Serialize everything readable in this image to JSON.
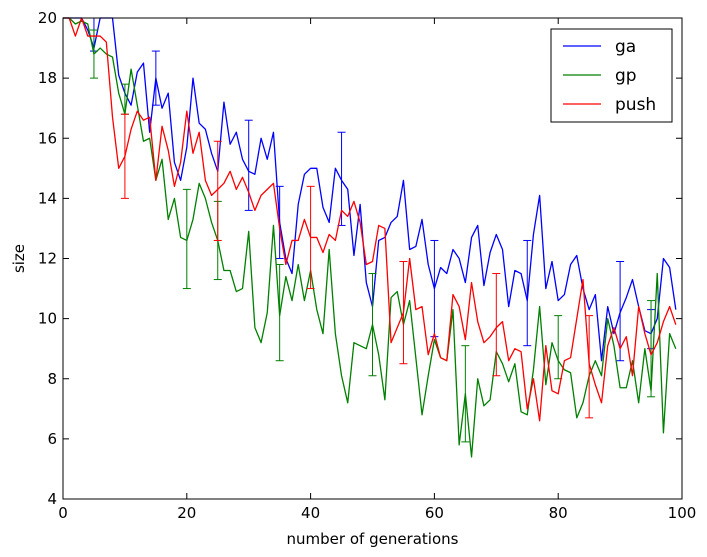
{
  "chart_data": {
    "type": "line",
    "title": "",
    "xlabel": "number of generations",
    "ylabel": "size",
    "xlim": [
      0,
      100
    ],
    "ylim": [
      4,
      20
    ],
    "xticks": [
      0,
      20,
      40,
      60,
      80,
      100
    ],
    "yticks": [
      4,
      6,
      8,
      10,
      12,
      14,
      16,
      18,
      20
    ],
    "grid": false,
    "legend_position": "top-right",
    "series": [
      {
        "name": "ga",
        "color": "#0000ff",
        "x": [
          0,
          1,
          2,
          3,
          4,
          5,
          6,
          7,
          8,
          9,
          10,
          11,
          12,
          13,
          14,
          15,
          16,
          17,
          18,
          19,
          20,
          21,
          22,
          23,
          24,
          25,
          26,
          27,
          28,
          29,
          30,
          31,
          32,
          33,
          34,
          35,
          36,
          37,
          38,
          39,
          40,
          41,
          42,
          43,
          44,
          45,
          46,
          47,
          48,
          49,
          50,
          51,
          52,
          53,
          54,
          55,
          56,
          57,
          58,
          59,
          60,
          61,
          62,
          63,
          64,
          65,
          66,
          67,
          68,
          69,
          70,
          71,
          72,
          73,
          74,
          75,
          76,
          77,
          78,
          79,
          80,
          81,
          82,
          83,
          84,
          85,
          86,
          87,
          88,
          89,
          90,
          91,
          92,
          93,
          94,
          95,
          96,
          97,
          98,
          99
        ],
        "values": [
          20,
          20,
          20,
          20,
          19.6,
          19.0,
          20,
          20,
          20,
          18.1,
          17.5,
          17.1,
          18.2,
          18.5,
          16.2,
          18.0,
          17.0,
          17.5,
          15.2,
          14.6,
          15.7,
          18.0,
          16.5,
          16.3,
          15.5,
          14.9,
          17.2,
          15.8,
          16.2,
          15.3,
          14.9,
          14.8,
          16.0,
          15.3,
          16.2,
          13.2,
          12.0,
          11.5,
          13.8,
          14.8,
          15.0,
          15.0,
          13.7,
          13.2,
          15.0,
          14.6,
          14.3,
          12.1,
          13.8,
          11.2,
          10.4,
          12.6,
          12.7,
          13.2,
          13.4,
          14.6,
          12.3,
          12.4,
          13.3,
          11.8,
          11.0,
          11.7,
          11.5,
          12.3,
          12.0,
          11.2,
          12.7,
          13.1,
          11.1,
          12.2,
          12.8,
          12.3,
          10.4,
          11.6,
          11.5,
          10.6,
          12.8,
          14.1,
          11.0,
          11.9,
          10.6,
          10.8,
          11.8,
          12.1,
          11.0,
          10.3,
          10.8,
          8.6,
          10.4,
          9.5,
          10.2,
          10.7,
          11.3,
          10.4,
          9.6,
          9.5,
          10.0,
          12.0,
          11.7,
          10.3
        ],
        "error_bars": [
          {
            "x": 5,
            "low": 18.9,
            "high": 20.0
          },
          {
            "x": 15,
            "low": 17.1,
            "high": 18.9
          },
          {
            "x": 30,
            "low": 13.6,
            "high": 16.6
          },
          {
            "x": 35,
            "low": 12.0,
            "high": 14.4
          },
          {
            "x": 45,
            "low": 13.1,
            "high": 16.2
          },
          {
            "x": 60,
            "low": 9.4,
            "high": 12.6
          },
          {
            "x": 75,
            "low": 9.1,
            "high": 12.6
          },
          {
            "x": 90,
            "low": 8.6,
            "high": 11.9
          },
          {
            "x": 95,
            "low": 9.0,
            "high": 10.3
          }
        ]
      },
      {
        "name": "gp",
        "color": "#008000",
        "x": [
          0,
          1,
          2,
          3,
          4,
          5,
          6,
          7,
          8,
          9,
          10,
          11,
          12,
          13,
          14,
          15,
          16,
          17,
          18,
          19,
          20,
          21,
          22,
          23,
          24,
          25,
          26,
          27,
          28,
          29,
          30,
          31,
          32,
          33,
          34,
          35,
          36,
          37,
          38,
          39,
          40,
          41,
          42,
          43,
          44,
          45,
          46,
          47,
          48,
          49,
          50,
          51,
          52,
          53,
          54,
          55,
          56,
          57,
          58,
          59,
          60,
          61,
          62,
          63,
          64,
          65,
          66,
          67,
          68,
          69,
          70,
          71,
          72,
          73,
          74,
          75,
          76,
          77,
          78,
          79,
          80,
          81,
          82,
          83,
          84,
          85,
          86,
          87,
          88,
          89,
          90,
          91,
          92,
          93,
          94,
          95,
          96,
          97,
          98,
          99
        ],
        "values": [
          20,
          20,
          19.8,
          19.9,
          19.8,
          18.8,
          19.0,
          18.8,
          18.7,
          17.5,
          16.8,
          18.3,
          17.1,
          15.9,
          16.0,
          14.6,
          15.3,
          13.3,
          14.0,
          12.7,
          12.6,
          13.3,
          14.5,
          14.0,
          13.2,
          12.6,
          11.6,
          11.6,
          10.9,
          11.0,
          12.9,
          9.7,
          9.2,
          10.2,
          13.1,
          10.1,
          11.4,
          10.6,
          11.8,
          10.6,
          11.6,
          10.3,
          9.5,
          12.3,
          9.5,
          8.1,
          7.2,
          9.2,
          9.1,
          9.0,
          9.8,
          8.8,
          7.3,
          10.7,
          10.9,
          9.8,
          10.6,
          8.7,
          6.8,
          8.1,
          9.3,
          8.7,
          8.6,
          10.3,
          5.8,
          7.5,
          5.4,
          8.0,
          7.1,
          7.3,
          8.9,
          8.5,
          7.9,
          8.5,
          6.9,
          6.8,
          8.3,
          10.4,
          7.8,
          9.2,
          8.6,
          8.3,
          8.2,
          6.7,
          7.2,
          8.1,
          8.6,
          8.1,
          10.0,
          9.1,
          7.7,
          7.7,
          8.6,
          7.2,
          9.0,
          7.6,
          11.5,
          6.2,
          9.5,
          9.0
        ],
        "error_bars": [
          {
            "x": 5,
            "low": 18.0,
            "high": 19.6
          },
          {
            "x": 10,
            "low": 16.8,
            "high": 17.8
          },
          {
            "x": 20,
            "low": 11.0,
            "high": 14.3
          },
          {
            "x": 25,
            "low": 11.3,
            "high": 13.9
          },
          {
            "x": 35,
            "low": 8.6,
            "high": 11.8
          },
          {
            "x": 50,
            "low": 8.1,
            "high": 11.5
          },
          {
            "x": 65,
            "low": 5.9,
            "high": 9.1
          },
          {
            "x": 80,
            "low": 8.0,
            "high": 10.1
          },
          {
            "x": 95,
            "low": 7.4,
            "high": 10.6
          }
        ]
      },
      {
        "name": "push",
        "color": "#ff0000",
        "x": [
          0,
          1,
          2,
          3,
          4,
          5,
          6,
          7,
          8,
          9,
          10,
          11,
          12,
          13,
          14,
          15,
          16,
          17,
          18,
          19,
          20,
          21,
          22,
          23,
          24,
          25,
          26,
          27,
          28,
          29,
          30,
          31,
          32,
          33,
          34,
          35,
          36,
          37,
          38,
          39,
          40,
          41,
          42,
          43,
          44,
          45,
          46,
          47,
          48,
          49,
          50,
          51,
          52,
          53,
          54,
          55,
          56,
          57,
          58,
          59,
          60,
          61,
          62,
          63,
          64,
          65,
          66,
          67,
          68,
          69,
          70,
          71,
          72,
          73,
          74,
          75,
          76,
          77,
          78,
          79,
          80,
          81,
          82,
          83,
          84,
          85,
          86,
          87,
          88,
          89,
          90,
          91,
          92,
          93,
          94,
          95,
          96,
          97,
          98,
          99
        ],
        "values": [
          20,
          20,
          19.4,
          20,
          19.4,
          19.4,
          19.4,
          19.2,
          16.7,
          15.0,
          15.4,
          16.3,
          16.9,
          16.6,
          16.7,
          14.6,
          16.4,
          15.6,
          14.4,
          15.2,
          16.9,
          15.5,
          16.2,
          14.6,
          14.1,
          14.3,
          14.5,
          14.9,
          14.3,
          14.7,
          14.2,
          13.6,
          14.1,
          14.3,
          14.5,
          13.0,
          11.8,
          12.6,
          12.6,
          13.3,
          12.7,
          12.7,
          12.2,
          12.8,
          12.6,
          13.6,
          13.4,
          13.9,
          13.2,
          11.8,
          11.9,
          13.1,
          13.0,
          9.2,
          9.7,
          10.2,
          12.0,
          10.3,
          10.4,
          8.8,
          9.5,
          8.7,
          8.6,
          10.8,
          10.4,
          9.3,
          11.2,
          9.9,
          9.2,
          9.4,
          9.7,
          9.9,
          8.6,
          9.0,
          8.9,
          7.0,
          8.0,
          6.6,
          9.1,
          7.6,
          7.5,
          8.6,
          8.7,
          10.0,
          11.3,
          8.5,
          7.8,
          7.2,
          9.1,
          9.7,
          9.0,
          9.4,
          8.1,
          10.4,
          9.5,
          8.8,
          9.2,
          9.9,
          10.4,
          9.8
        ],
        "error_bars": [
          {
            "x": 10,
            "low": 14.0,
            "high": 16.8
          },
          {
            "x": 25,
            "low": 12.6,
            "high": 15.9
          },
          {
            "x": 40,
            "low": 11.0,
            "high": 14.4
          },
          {
            "x": 55,
            "low": 8.5,
            "high": 11.9
          },
          {
            "x": 70,
            "low": 8.1,
            "high": 11.5
          },
          {
            "x": 85,
            "low": 6.7,
            "high": 10.1
          }
        ]
      }
    ]
  }
}
